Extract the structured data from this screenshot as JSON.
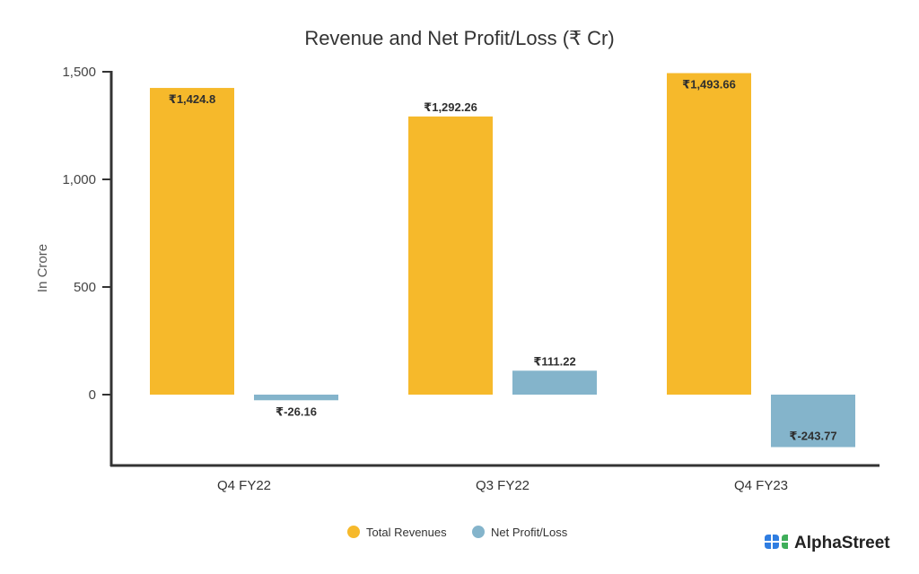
{
  "chart_data": {
    "type": "bar",
    "title": "Revenue and Net Profit/Loss (₹ Cr)",
    "xlabel": "",
    "ylabel": "In Crore",
    "ylim": [
      -330,
      1500
    ],
    "yticks": [
      0,
      500,
      1000,
      1500
    ],
    "ytick_labels": [
      "0",
      "500",
      "1,000",
      "1,500"
    ],
    "grid": false,
    "legend_position": "bottom-center",
    "categories": [
      "Q4 FY22",
      "Q3 FY22",
      "Q4 FY23"
    ],
    "series": [
      {
        "name": "Total Revenues",
        "color": "#F6B92B",
        "values": [
          1424.8,
          1292.26,
          1493.66
        ],
        "labels": [
          "₹1,424.8",
          "₹1,292.26",
          "₹1,493.66"
        ]
      },
      {
        "name": "Net Profit/Loss",
        "color": "#84B4CB",
        "values": [
          -26.16,
          111.22,
          -243.77
        ],
        "labels": [
          "₹-26.16",
          "₹111.22",
          "₹-243.77"
        ]
      }
    ]
  },
  "branding": {
    "name": "AlphaStreet",
    "logo_colors": [
      "#2F7DE1",
      "#3FAE5A"
    ]
  },
  "colors": {
    "axis": "#333333"
  }
}
